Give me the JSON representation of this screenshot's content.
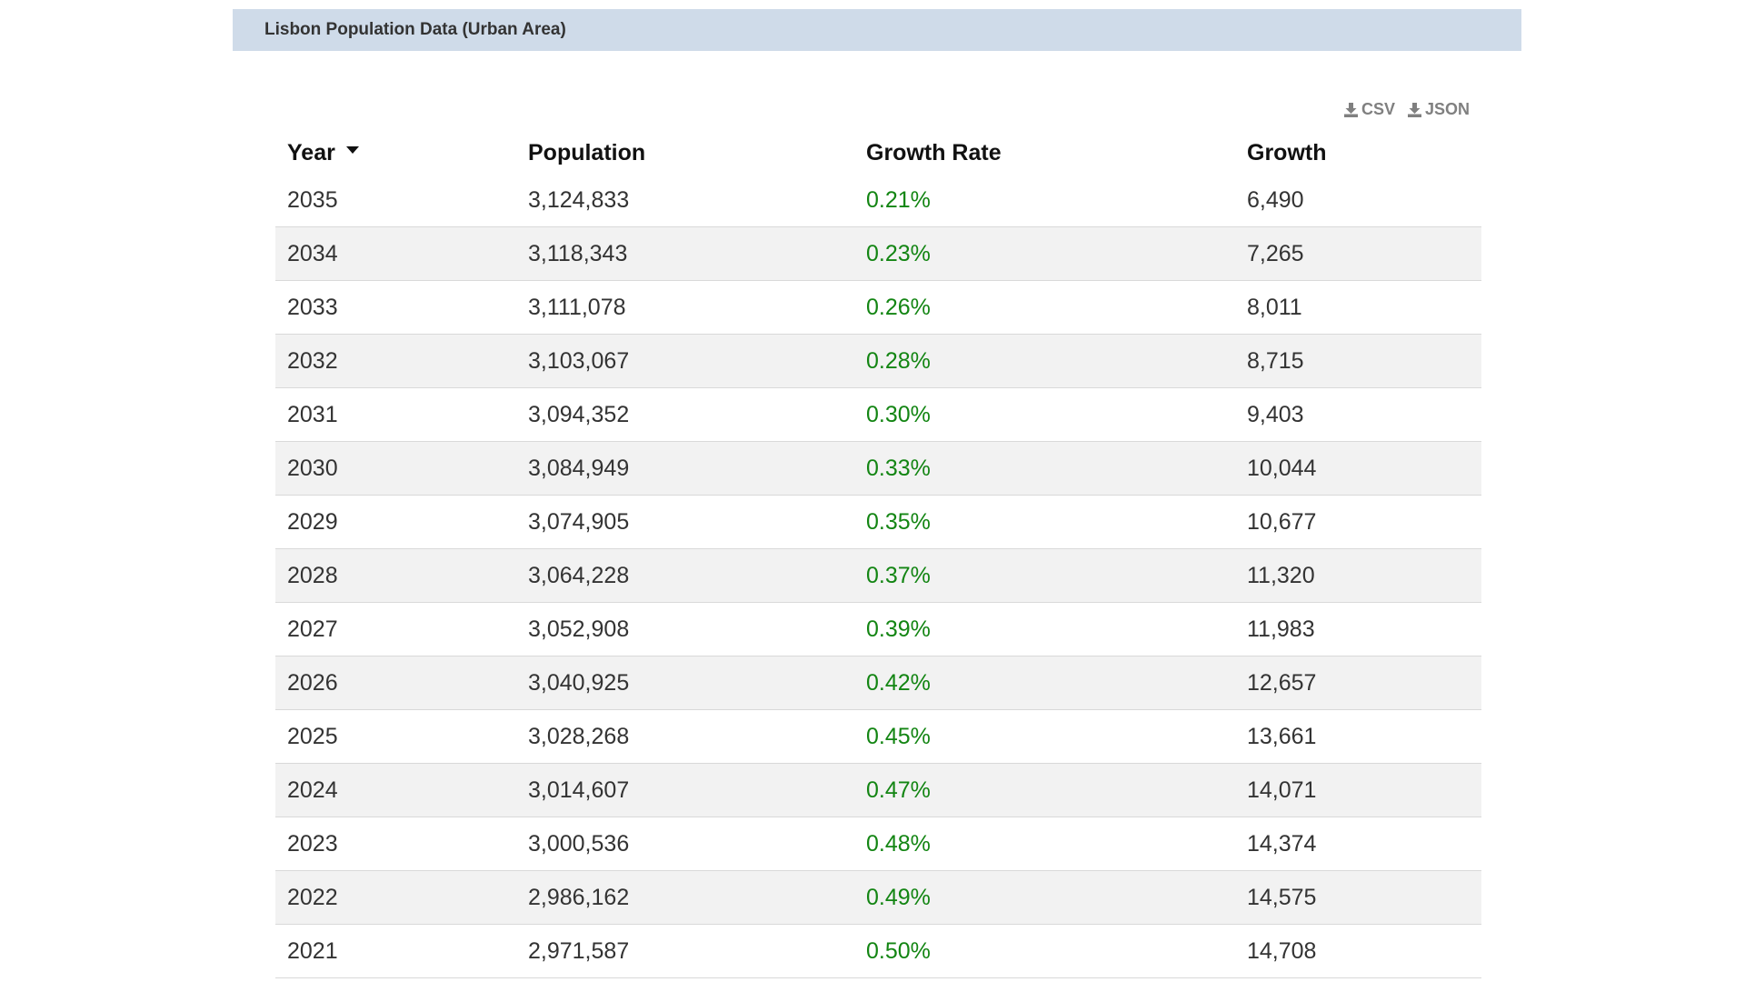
{
  "panel": {
    "title": "Lisbon Population Data (Urban Area)"
  },
  "exports": {
    "csv_label": "CSV",
    "json_label": "JSON"
  },
  "icons": {
    "download": "download-icon",
    "sort": "sort-desc-caret-icon"
  },
  "colors": {
    "header_bg": "#cfdbe9",
    "growth_rate": "#138513",
    "row_alt_bg": "#f2f2f2"
  },
  "table": {
    "headers": {
      "year": "Year",
      "population": "Population",
      "growth_rate": "Growth Rate",
      "growth": "Growth"
    },
    "sort": {
      "column": "year",
      "direction": "descending"
    },
    "rows": [
      {
        "year": "2035",
        "population": "3,124,833",
        "growth_rate": "0.21%",
        "growth": "6,490"
      },
      {
        "year": "2034",
        "population": "3,118,343",
        "growth_rate": "0.23%",
        "growth": "7,265"
      },
      {
        "year": "2033",
        "population": "3,111,078",
        "growth_rate": "0.26%",
        "growth": "8,011"
      },
      {
        "year": "2032",
        "population": "3,103,067",
        "growth_rate": "0.28%",
        "growth": "8,715"
      },
      {
        "year": "2031",
        "population": "3,094,352",
        "growth_rate": "0.30%",
        "growth": "9,403"
      },
      {
        "year": "2030",
        "population": "3,084,949",
        "growth_rate": "0.33%",
        "growth": "10,044"
      },
      {
        "year": "2029",
        "population": "3,074,905",
        "growth_rate": "0.35%",
        "growth": "10,677"
      },
      {
        "year": "2028",
        "population": "3,064,228",
        "growth_rate": "0.37%",
        "growth": "11,320"
      },
      {
        "year": "2027",
        "population": "3,052,908",
        "growth_rate": "0.39%",
        "growth": "11,983"
      },
      {
        "year": "2026",
        "population": "3,040,925",
        "growth_rate": "0.42%",
        "growth": "12,657"
      },
      {
        "year": "2025",
        "population": "3,028,268",
        "growth_rate": "0.45%",
        "growth": "13,661"
      },
      {
        "year": "2024",
        "population": "3,014,607",
        "growth_rate": "0.47%",
        "growth": "14,071"
      },
      {
        "year": "2023",
        "population": "3,000,536",
        "growth_rate": "0.48%",
        "growth": "14,374"
      },
      {
        "year": "2022",
        "population": "2,986,162",
        "growth_rate": "0.49%",
        "growth": "14,575"
      },
      {
        "year": "2021",
        "population": "2,971,587",
        "growth_rate": "0.50%",
        "growth": "14,708"
      }
    ]
  }
}
